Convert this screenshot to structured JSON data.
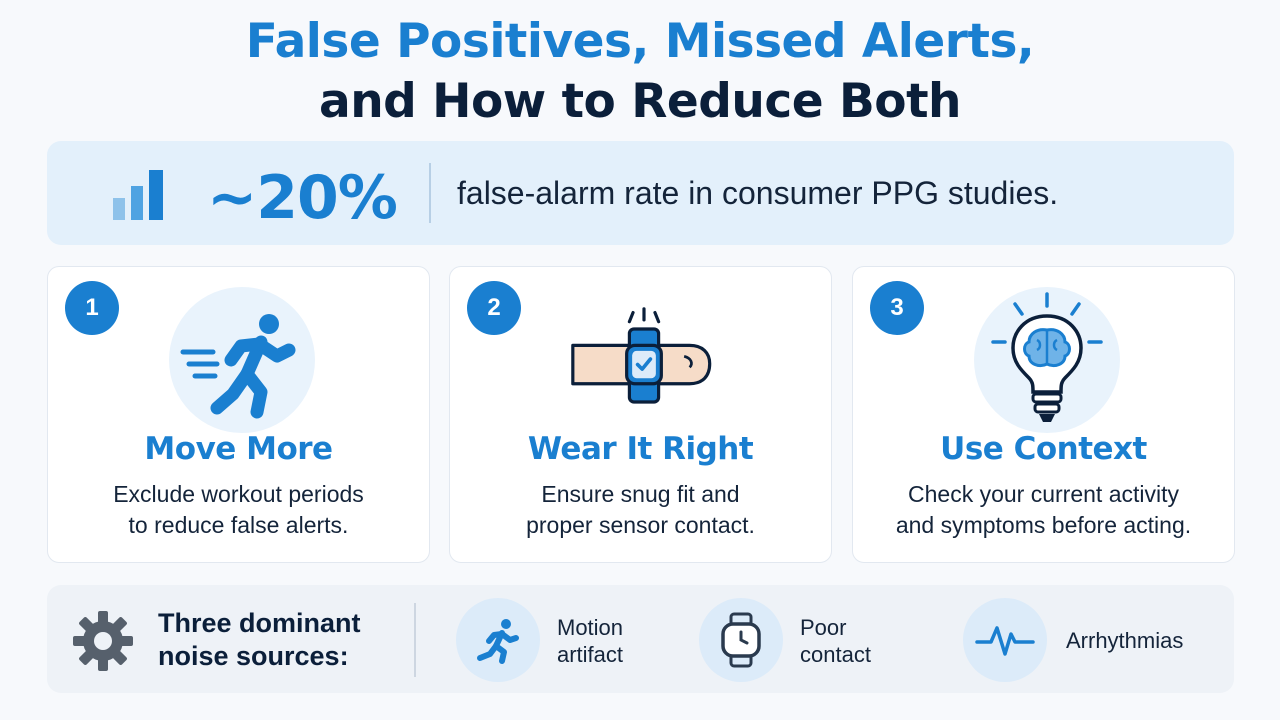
{
  "title": {
    "line1": "False Positives, Missed Alerts,",
    "line2": "and How to Reduce Both"
  },
  "stat": {
    "icon": "bar-chart-icon",
    "value": "~20%",
    "text": "false-alarm rate in consumer PPG studies."
  },
  "cards": [
    {
      "number": "1",
      "icon": "running-person-icon",
      "title": "Move More",
      "desc_line1": "Exclude workout periods",
      "desc_line2": "to reduce false alerts."
    },
    {
      "number": "2",
      "icon": "wrist-watch-icon",
      "title": "Wear It Right",
      "desc_line1": "Ensure snug fit and",
      "desc_line2": "proper sensor contact."
    },
    {
      "number": "3",
      "icon": "lightbulb-brain-icon",
      "title": "Use Context",
      "desc_line1": "Check your current activity",
      "desc_line2": "and symptoms before acting."
    }
  ],
  "noise": {
    "icon": "gear-icon",
    "label_line1": "Three dominant",
    "label_line2": "noise sources:",
    "sources": [
      {
        "icon": "running-icon",
        "line1": "Motion",
        "line2": "artifact"
      },
      {
        "icon": "watch-icon",
        "line1": "Poor",
        "line2": "contact"
      },
      {
        "icon": "heartbeat-icon",
        "line1": "Arrhythmias",
        "line2": ""
      }
    ]
  },
  "colors": {
    "accent": "#1a7fd0",
    "dark": "#0b1f3a",
    "banner_bg": "#e3f0fb",
    "card_bg": "#ffffff",
    "page_bg": "#f7f9fc"
  }
}
